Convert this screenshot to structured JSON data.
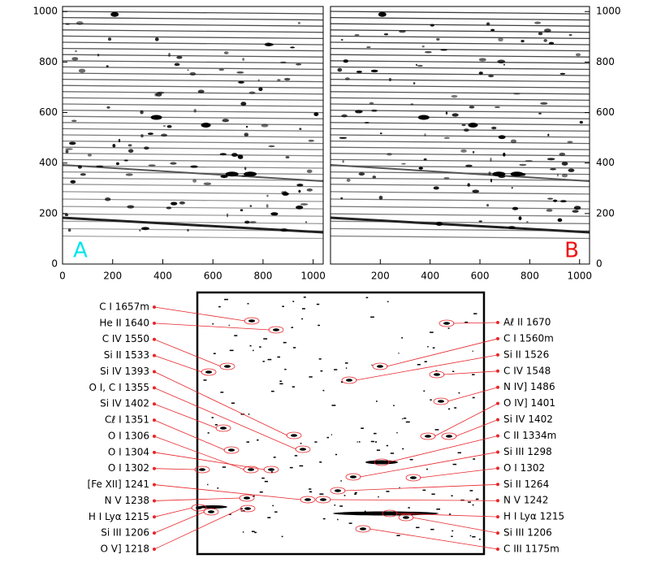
{
  "panels": [
    {
      "label": "A",
      "label_color": "#00e5ee",
      "xlim": [
        0,
        1040
      ],
      "ylim": [
        0,
        1020
      ],
      "xticks": [
        0,
        200,
        400,
        600,
        800,
        1000
      ],
      "yticks": [
        0,
        200,
        400,
        600,
        800,
        1000
      ]
    },
    {
      "label": "B",
      "label_color": "#ee1111",
      "xlim": [
        0,
        1040
      ],
      "ylim": [
        0,
        1020
      ],
      "xticks": [
        200,
        400,
        600,
        800,
        1000
      ],
      "yticks": [
        0,
        200,
        400,
        600,
        800,
        1000
      ]
    }
  ],
  "lines_left": [
    "C I 1657m",
    "He II 1640",
    "C IV 1550",
    "Si II 1533",
    "Si IV 1393",
    "O I, C I 1355",
    "Si IV 1402",
    "Cℓ I 1351",
    "O I 1306",
    "O I 1304",
    "O I 1302",
    "[Fe XII] 1241",
    "N V 1238",
    "H I Lyα 1215",
    "Si III 1206",
    "O V] 1218"
  ],
  "lines_right": [
    "Aℓ II 1670",
    "C I 1560m",
    "Si II 1526",
    "C IV 1548",
    "N IV] 1486",
    "O IV] 1401",
    "Si IV 1402",
    "C II 1334m",
    "Si III 1298",
    "O I 1302",
    "Si II 1264",
    "N V 1242",
    "H I Lyα 1215",
    "Si III 1206",
    "C III 1175m"
  ]
}
